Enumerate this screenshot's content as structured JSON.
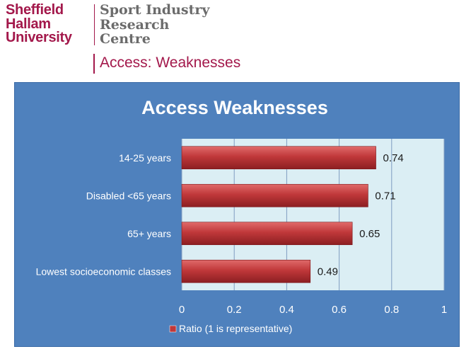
{
  "branding": {
    "university_lines": [
      "Sheffield",
      "Hallam",
      "University"
    ],
    "centre_lines": [
      "Sport Industry",
      "Research",
      "Centre"
    ],
    "brand_color": "#a3184b"
  },
  "slide": {
    "title": "Access: Weaknesses"
  },
  "chart_data": {
    "type": "bar",
    "orientation": "horizontal",
    "title": "Access  Weaknesses",
    "categories": [
      "14-25 years",
      "Disabled <65 years",
      "65+ years",
      "Lowest socioeconomic classes"
    ],
    "series": [
      {
        "name": "Ratio (1 is representative)",
        "values": [
          0.74,
          0.71,
          0.65,
          0.49
        ],
        "color": "#c0383a"
      }
    ],
    "data_labels": [
      "0.74",
      "0.71",
      "0.65",
      "0.49"
    ],
    "xlim": [
      0,
      1
    ],
    "xticks": [
      0,
      0.2,
      0.4,
      0.6,
      0.8,
      1
    ],
    "xtick_labels": [
      "0",
      "0.2",
      "0.4",
      "0.6",
      "0.8",
      "1"
    ],
    "grid": true,
    "legend_position": "bottom",
    "colors": {
      "background": "#4f81bd",
      "plot_area": "#dbeef4",
      "text": "#ffffff"
    }
  }
}
